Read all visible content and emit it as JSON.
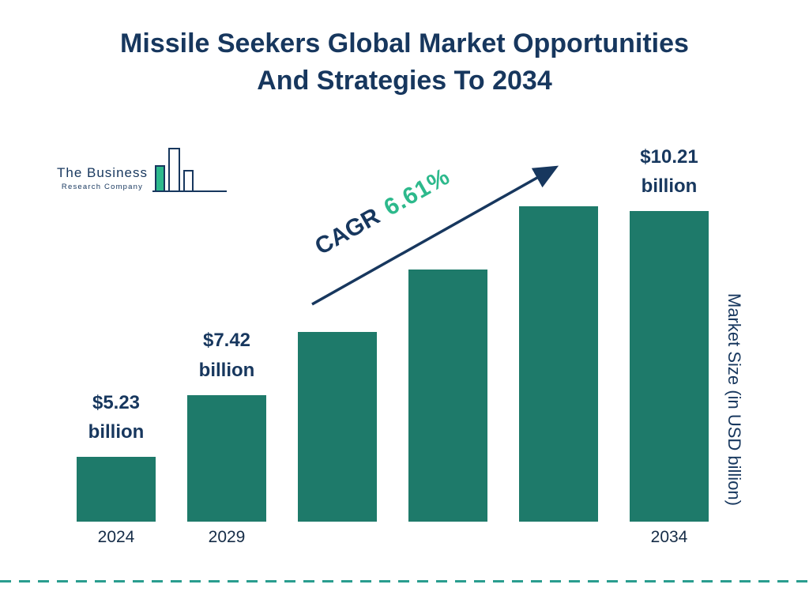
{
  "title": {
    "line1": "Missile Seekers Global Market Opportunities",
    "line2": "And Strategies To 2034"
  },
  "logo": {
    "line1": "The Business",
    "line2": "Research Company",
    "glyph": "bar-chart-logo-icon"
  },
  "cagr": {
    "prefix": "CAGR",
    "value": "6.61%"
  },
  "colors": {
    "navy": "#17375e",
    "teal": "#1e7a6a",
    "green": "#2db98c",
    "dashed_rule": "#2a9d8f"
  },
  "chart_data": {
    "type": "bar",
    "title": "Missile Seekers Global Market Opportunities And Strategies To 2034",
    "ylabel": "Market Size (in USD billion)",
    "xlabel": "",
    "legend": false,
    "grid": false,
    "cagr_annotation": "CAGR 6.61%",
    "categories": [
      "2024",
      "2029",
      "",
      "",
      "",
      "2034"
    ],
    "values": [
      5.23,
      7.42,
      null,
      null,
      null,
      10.21
    ],
    "bars": [
      {
        "category": "2024",
        "value": 5.23,
        "label_line1": "$5.23",
        "label_line2": "billion",
        "height_pct": 17.1
      },
      {
        "category": "2029",
        "value": 7.42,
        "label_line1": "$7.42",
        "label_line2": "billion",
        "height_pct": 33.4
      },
      {
        "category": "",
        "value": null,
        "label_line1": "",
        "label_line2": "",
        "height_pct": 49.9
      },
      {
        "category": "",
        "value": null,
        "label_line1": "",
        "label_line2": "",
        "height_pct": 66.4
      },
      {
        "category": "",
        "value": null,
        "label_line1": "",
        "label_line2": "",
        "height_pct": 83.1
      },
      {
        "category": "2034",
        "value": 10.21,
        "label_line1": "$10.21",
        "label_line2": "billion",
        "height_pct": 100
      }
    ]
  }
}
